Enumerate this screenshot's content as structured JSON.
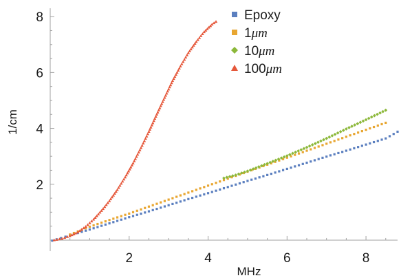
{
  "chart_data": {
    "type": "scatter",
    "title": "",
    "xlabel": "MHz",
    "ylabel": "1/cm",
    "xlim": [
      0,
      8.8
    ],
    "ylim": [
      -0.1,
      8.3
    ],
    "xticks": [
      2,
      4,
      6,
      8
    ],
    "yticks": [
      2,
      4,
      6,
      8
    ],
    "grid": false,
    "legend_position": "top-center",
    "series": [
      {
        "name": "Epoxy",
        "marker": "square",
        "color": "#5b7fbf",
        "x": [
          0.05,
          0.5,
          1.0,
          1.5,
          2.0,
          2.5,
          3.0,
          3.5,
          4.0,
          4.5,
          5.0,
          5.5,
          6.0,
          6.5,
          7.0,
          7.5,
          8.0,
          8.5,
          8.8
        ],
        "y": [
          -0.02,
          0.17,
          0.38,
          0.6,
          0.82,
          1.03,
          1.25,
          1.47,
          1.68,
          1.9,
          2.12,
          2.33,
          2.55,
          2.77,
          2.99,
          3.2,
          3.42,
          3.64,
          3.88
        ]
      },
      {
        "name": "1μm",
        "marker": "square",
        "color": "#e8a631",
        "x": [
          0.5,
          1.0,
          1.5,
          2.0,
          2.5,
          3.0,
          3.5,
          4.0,
          4.5,
          5.0,
          5.5,
          6.0,
          6.5,
          7.0,
          7.5,
          8.0,
          8.5
        ],
        "y": [
          0.2,
          0.48,
          0.72,
          0.95,
          1.2,
          1.45,
          1.7,
          1.95,
          2.2,
          2.45,
          2.7,
          2.95,
          3.2,
          3.45,
          3.7,
          3.95,
          4.2
        ]
      },
      {
        "name": "10μm",
        "marker": "diamond",
        "color": "#8cb83a",
        "x": [
          4.4,
          4.7,
          5.0,
          5.5,
          6.0,
          6.5,
          7.0,
          7.5,
          8.0,
          8.5
        ],
        "y": [
          2.22,
          2.33,
          2.47,
          2.74,
          3.02,
          3.32,
          3.64,
          3.98,
          4.31,
          4.65
        ]
      },
      {
        "name": "100μm",
        "marker": "triangle",
        "color": "#e5573a",
        "x": [
          0.1,
          0.3,
          0.5,
          0.7,
          0.9,
          1.1,
          1.3,
          1.5,
          1.7,
          1.9,
          2.1,
          2.3,
          2.5,
          2.7,
          2.9,
          3.1,
          3.3,
          3.5,
          3.7,
          3.9,
          4.1,
          4.2
        ],
        "y": [
          0.0,
          0.05,
          0.15,
          0.28,
          0.48,
          0.74,
          1.05,
          1.4,
          1.8,
          2.25,
          2.75,
          3.3,
          3.88,
          4.5,
          5.1,
          5.7,
          6.22,
          6.7,
          7.1,
          7.45,
          7.72,
          7.82
        ]
      }
    ]
  }
}
